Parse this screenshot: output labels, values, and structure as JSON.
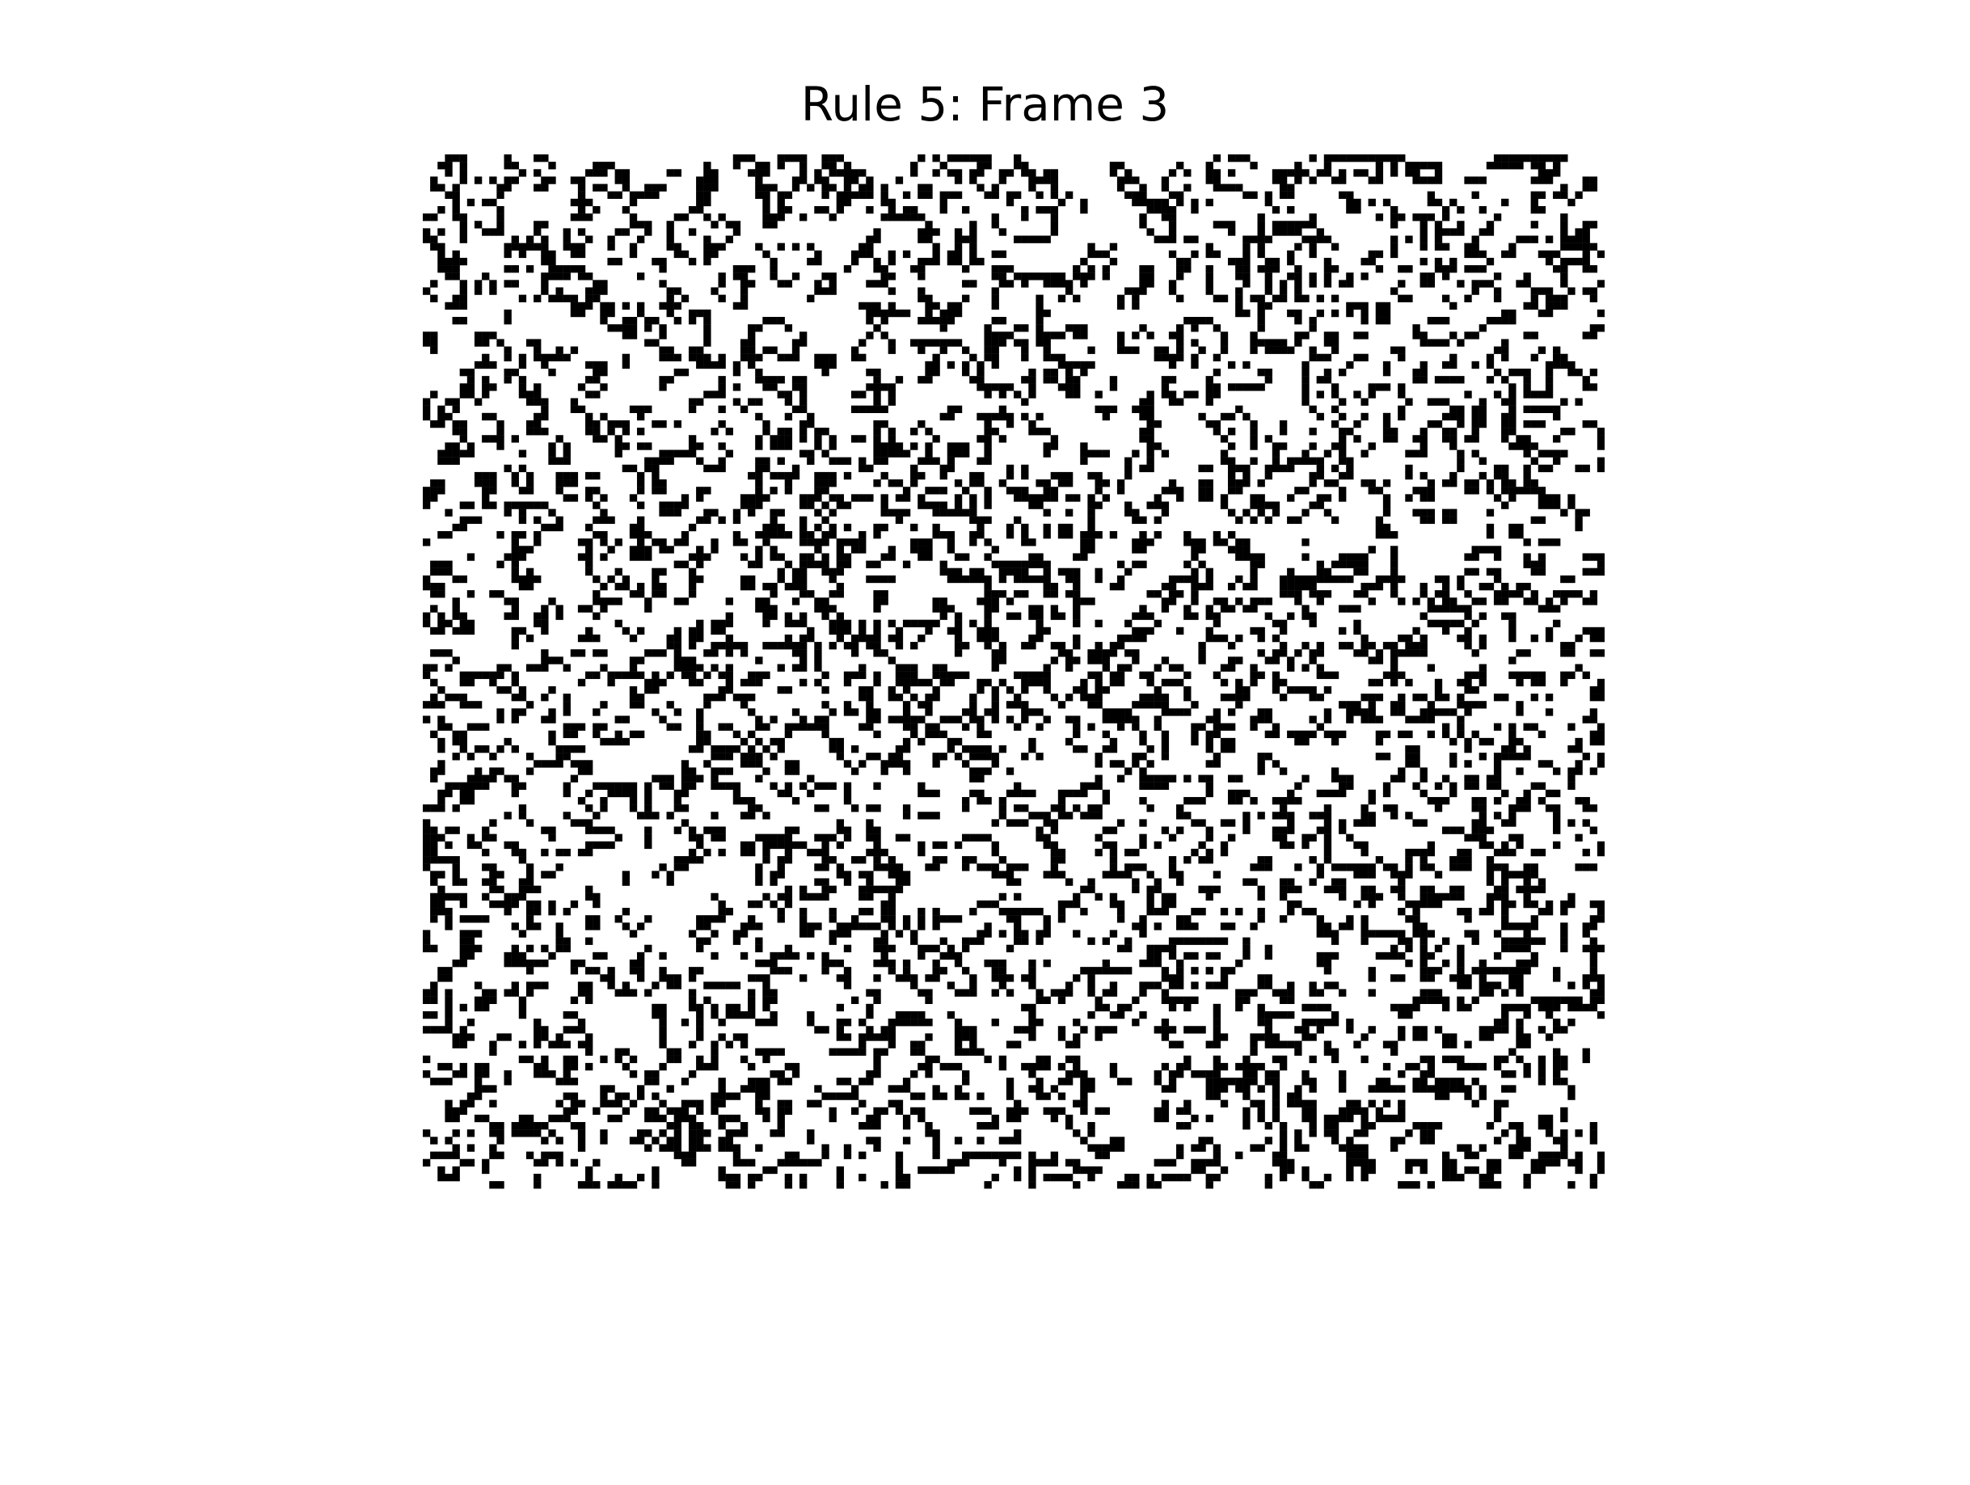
{
  "chart_data": {
    "type": "heatmap",
    "title": "Rule 5: Frame 3",
    "subtitle": "",
    "xlabel": "",
    "ylabel": "",
    "axes_visible": false,
    "grid": false,
    "legend": "none",
    "rows": 160,
    "cols": 160,
    "colormap": {
      "0": "#ffffff",
      "1": "#000000"
    },
    "density": 0.13,
    "seed": 5003,
    "rule": 5,
    "frame": 3
  }
}
